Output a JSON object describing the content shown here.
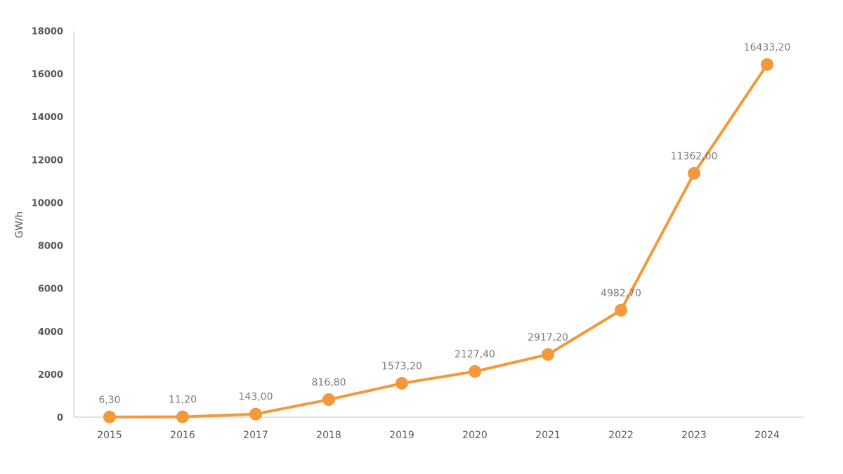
{
  "chart_data": {
    "type": "line",
    "title": "",
    "xlabel": "",
    "ylabel": "GW/h",
    "categories": [
      "2015",
      "2016",
      "2017",
      "2018",
      "2019",
      "2020",
      "2021",
      "2022",
      "2023",
      "2024"
    ],
    "values": [
      6.3,
      11.2,
      143.0,
      816.8,
      1573.2,
      2127.4,
      2917.2,
      4982.7,
      11362.0,
      16433.2
    ],
    "data_labels": [
      "6,30",
      "11,20",
      "143,00",
      "816,80",
      "1573,20",
      "2127,40",
      "2917,20",
      "4982,70",
      "11362,00",
      "16433,20"
    ],
    "ylim": [
      0,
      18000
    ],
    "yticks": [
      "0",
      "2000",
      "4000",
      "6000",
      "8000",
      "10000",
      "12000",
      "14000",
      "16000",
      "18000"
    ],
    "grid": false,
    "legend": "none",
    "series_color": "#f4993a"
  }
}
